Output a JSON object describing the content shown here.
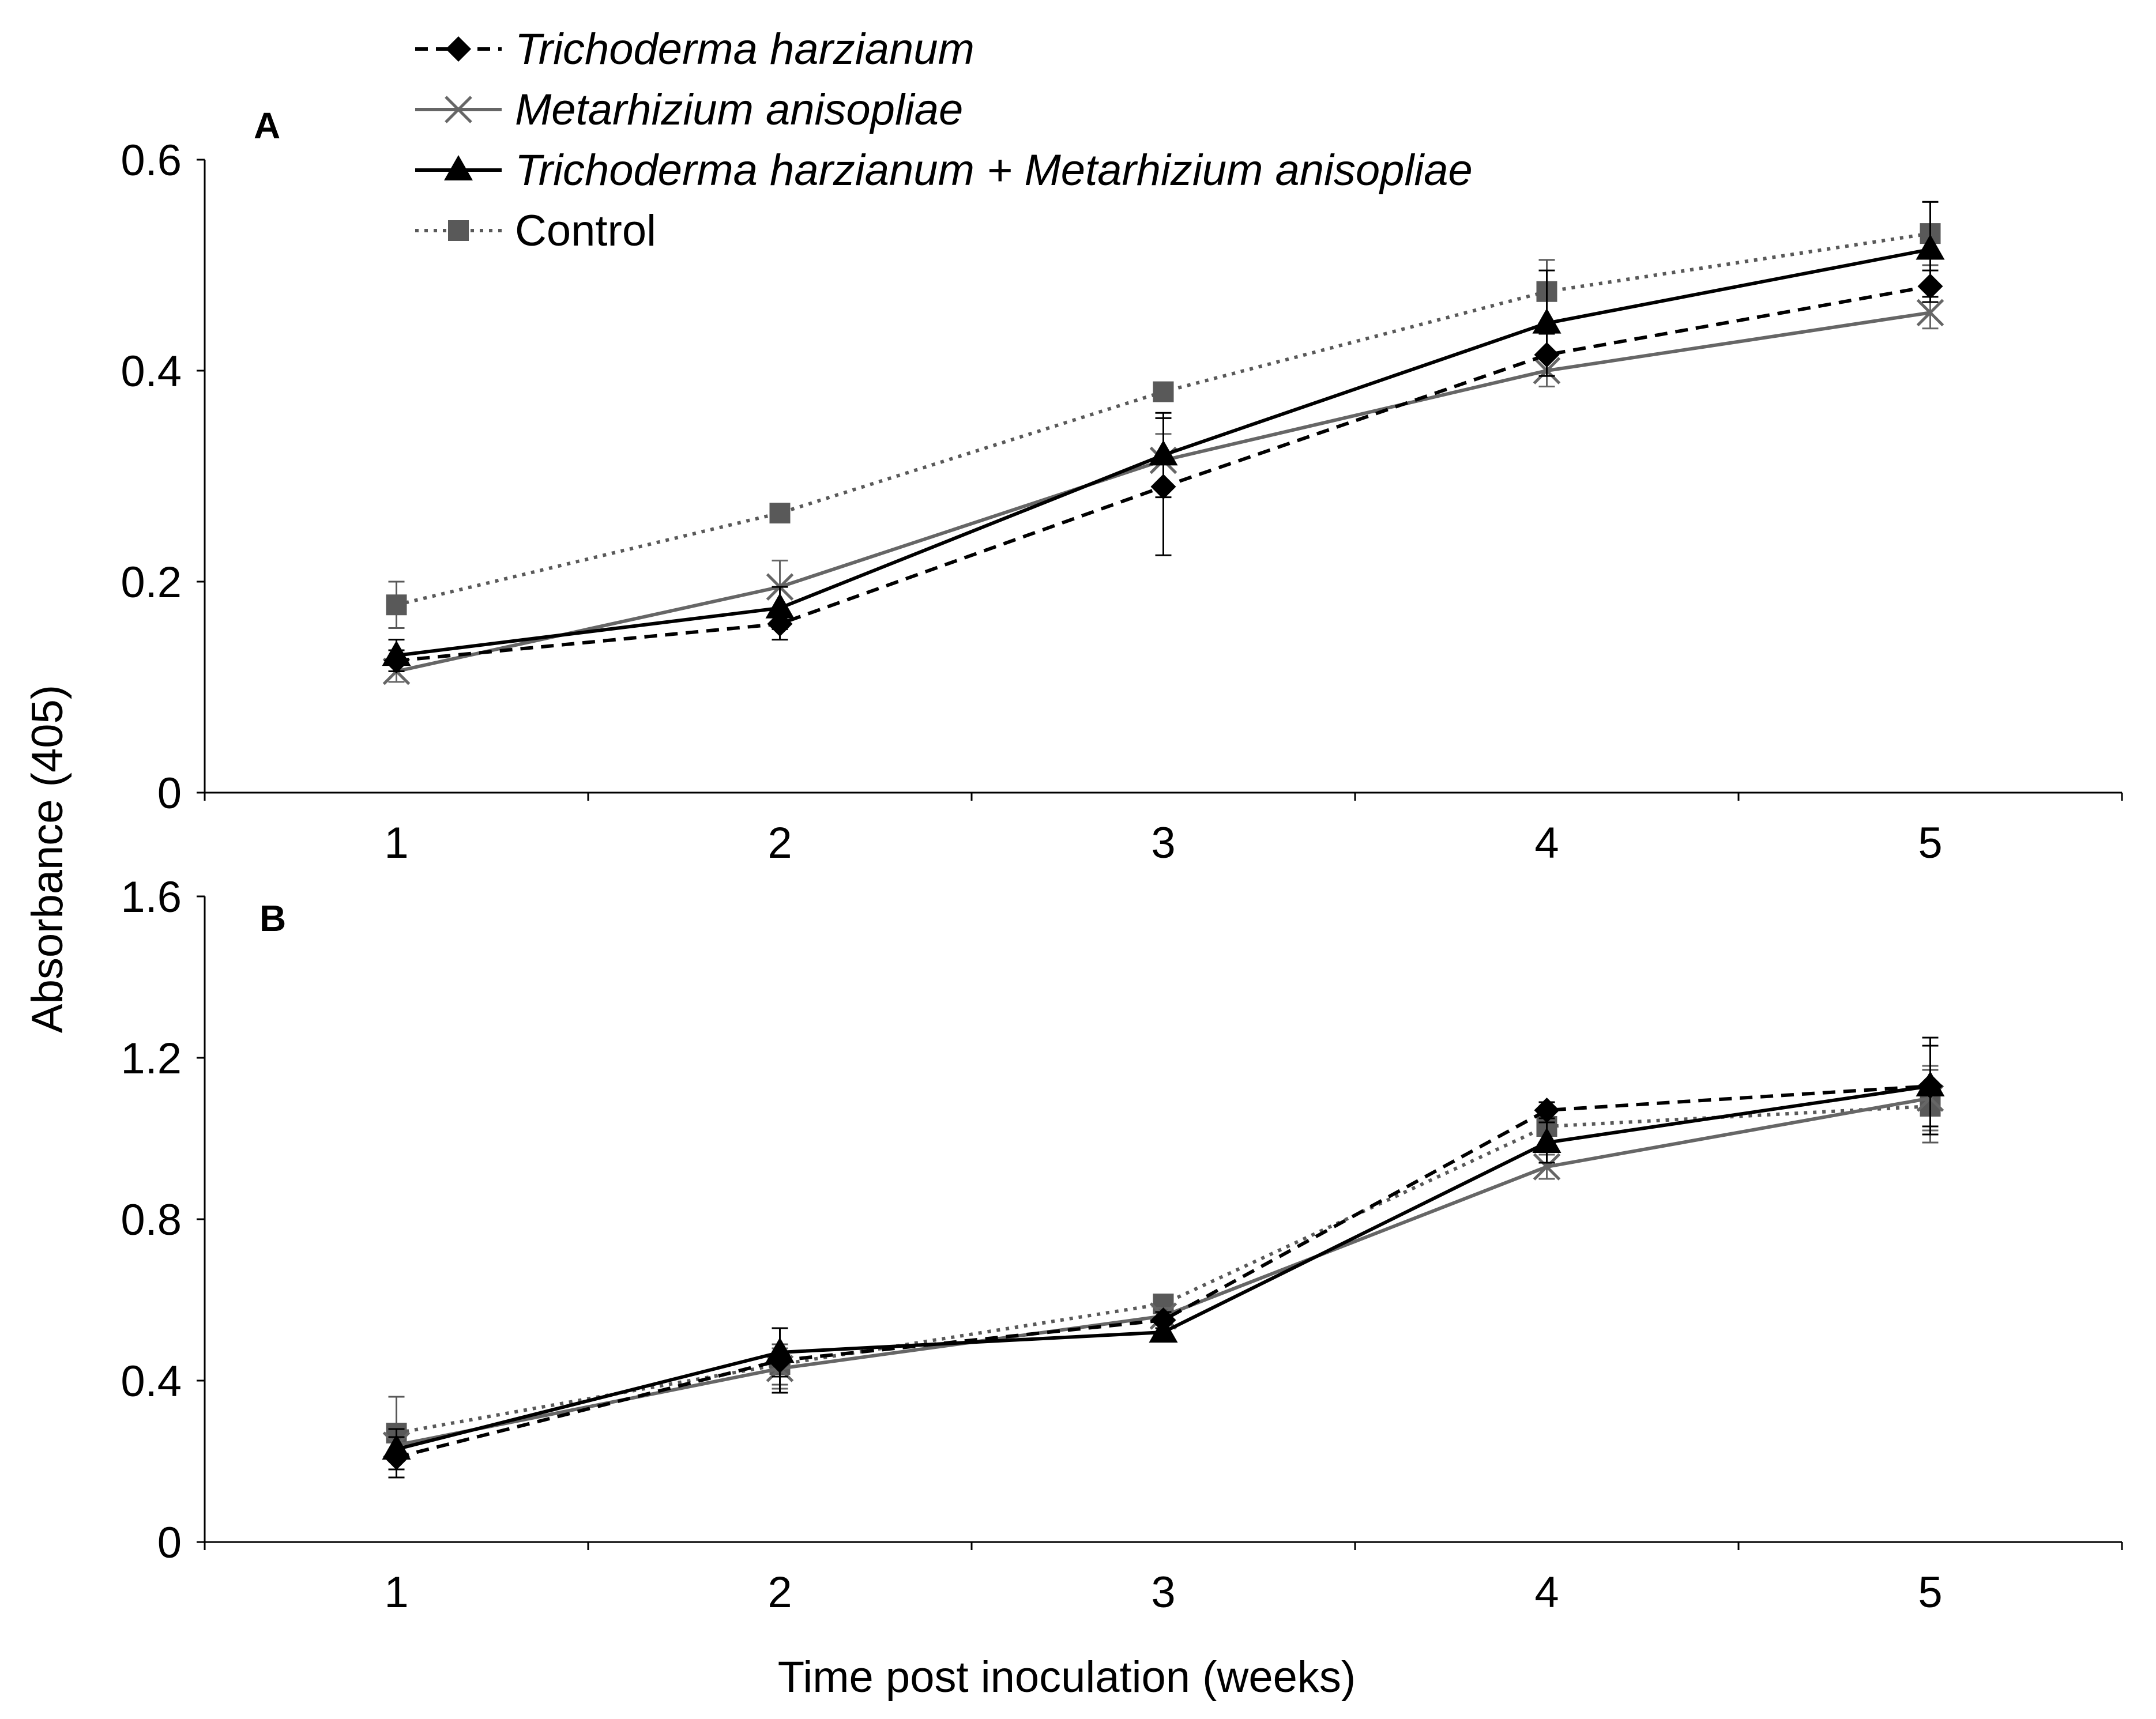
{
  "chart_data": {
    "type": "line",
    "ylabel": "Absorbance (405)",
    "xlabel": "Time post inoculation (weeks)",
    "x": [
      1,
      2,
      3,
      4,
      5
    ],
    "legend": [
      {
        "key": "th",
        "label": "Trichoderma harzianum",
        "italic": true
      },
      {
        "key": "ma",
        "label": "Metarhizium anisopliae",
        "italic": true
      },
      {
        "key": "thma",
        "label": "Trichoderma harzianum + Metarhizium anisopliae",
        "italic": true
      },
      {
        "key": "ctrl",
        "label": "Control",
        "italic": false
      }
    ],
    "styles": {
      "th": {
        "color": "#000000",
        "dash": "dashed",
        "marker": "diamond"
      },
      "ma": {
        "color": "#666666",
        "dash": "solid",
        "marker": "x"
      },
      "thma": {
        "color": "#000000",
        "dash": "solid",
        "marker": "triangle"
      },
      "ctrl": {
        "color": "#595959",
        "dash": "dotted",
        "marker": "square"
      }
    },
    "panels": [
      {
        "label": "A",
        "ylim": [
          0,
          0.6
        ],
        "yticks": [
          0,
          0.2,
          0.4,
          0.6
        ],
        "ytick_labels": [
          "0",
          "0.2",
          "0.4",
          "0.6"
        ],
        "xtick_labels": [
          "1",
          "2",
          "3",
          "4",
          "5"
        ],
        "series": [
          {
            "key": "th",
            "values": [
              0.125,
              0.16,
              0.29,
              0.415,
              0.48
            ],
            "errors": [
              0.01,
              0.015,
              0.065,
              0.02,
              0.015
            ]
          },
          {
            "key": "ma",
            "values": [
              0.115,
              0.195,
              0.315,
              0.4,
              0.455
            ],
            "errors": [
              0.01,
              0.025,
              0.025,
              0.015,
              0.015
            ]
          },
          {
            "key": "thma",
            "values": [
              0.13,
              0.175,
              0.32,
              0.445,
              0.515
            ],
            "errors": [
              0.015,
              0.02,
              0.04,
              0.05,
              0.045
            ]
          },
          {
            "key": "ctrl",
            "values": [
              0.178,
              0.265,
              0.38,
              0.475,
              0.53
            ],
            "errors": [
              0.022,
              0.005,
              0.005,
              0.03,
              0.03
            ]
          }
        ]
      },
      {
        "label": "B",
        "ylim": [
          0,
          1.6
        ],
        "yticks": [
          0,
          0.4,
          0.8,
          1.2,
          1.6
        ],
        "ytick_labels": [
          "0",
          "0.4",
          "0.8",
          "1.2",
          "1.6"
        ],
        "xtick_labels": [
          "1",
          "2",
          "3",
          "4",
          "5"
        ],
        "series": [
          {
            "key": "th",
            "values": [
              0.21,
              0.45,
              0.55,
              1.07,
              1.13
            ],
            "errors": [
              0.05,
              0.08,
              0.02,
              0.02,
              0.1
            ]
          },
          {
            "key": "ma",
            "values": [
              0.24,
              0.43,
              0.56,
              0.93,
              1.1
            ],
            "errors": [
              0.04,
              0.05,
              0.02,
              0.03,
              0.08
            ]
          },
          {
            "key": "thma",
            "values": [
              0.23,
              0.47,
              0.52,
              0.99,
              1.13
            ],
            "errors": [
              0.05,
              0.06,
              0.02,
              0.05,
              0.12
            ]
          },
          {
            "key": "ctrl",
            "values": [
              0.27,
              0.44,
              0.59,
              1.03,
              1.08
            ],
            "errors": [
              0.09,
              0.05,
              0.02,
              0.04,
              0.09
            ]
          }
        ]
      }
    ]
  }
}
